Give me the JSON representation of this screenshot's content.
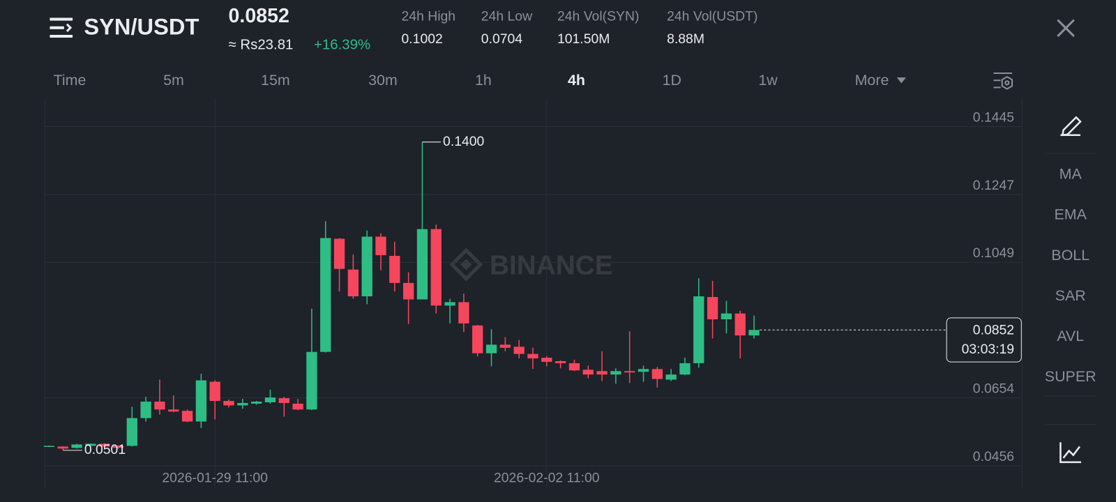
{
  "header": {
    "pair": "SYN/USDT",
    "price": "0.0852",
    "fiat_price": "≈ Rs23.81",
    "change": "+16.39%",
    "stats": [
      {
        "label": "24h High",
        "value": "0.1002"
      },
      {
        "label": "24h Low",
        "value": "0.0704"
      },
      {
        "label": "24h Vol(SYN)",
        "value": "101.50M"
      },
      {
        "label": "24h Vol(USDT)",
        "value": "8.88M"
      }
    ]
  },
  "timeframes": {
    "items": [
      "Time",
      "5m",
      "15m",
      "30m",
      "1h",
      "4h",
      "1D",
      "1w",
      "More"
    ],
    "active": "4h"
  },
  "indicators": [
    "MA",
    "EMA",
    "BOLL",
    "SAR",
    "AVL",
    "SUPER"
  ],
  "chart_data": {
    "type": "candlestick",
    "watermark": "BINANCE",
    "categories": [
      null,
      null,
      null,
      null,
      null,
      null,
      null,
      null,
      null,
      null,
      null,
      null,
      "2026-01-29 11:00",
      null,
      null,
      null,
      null,
      null,
      null,
      null,
      null,
      null,
      null,
      null,
      null,
      null,
      null,
      null,
      null,
      null,
      null,
      null,
      null,
      null,
      null,
      null,
      "2026-02-02 11:00",
      null,
      null,
      null,
      null,
      null,
      null,
      null,
      null,
      null,
      null,
      null,
      null,
      null,
      null,
      null
    ],
    "open": [
      0.0512,
      0.0512,
      0.0508,
      0.0514,
      0.052,
      0.0514,
      0.0514,
      0.0595,
      0.0643,
      0.062,
      0.0616,
      0.0585,
      0.0701,
      0.0645,
      0.0632,
      0.0637,
      0.0641,
      0.0653,
      0.0637,
      0.062,
      0.0788,
      0.1118,
      0.1028,
      0.095,
      0.1124,
      0.1068,
      0.0989,
      0.0941,
      0.1146,
      0.0923,
      0.0933,
      0.0865,
      0.0784,
      0.0809,
      0.0803,
      0.0782,
      0.0771,
      0.0761,
      0.0755,
      0.0736,
      0.0732,
      0.0722,
      0.0732,
      0.073,
      0.0738,
      0.0707,
      0.0722,
      0.0755,
      0.0948,
      0.0883,
      0.09,
      0.0836
    ],
    "high": [
      0.0515,
      0.0513,
      0.052,
      0.0521,
      0.0522,
      0.0516,
      0.0628,
      0.0657,
      0.0707,
      0.0661,
      0.062,
      0.0724,
      0.0705,
      0.0649,
      0.0651,
      0.0645,
      0.0678,
      0.0657,
      0.0651,
      0.0914,
      0.1169,
      0.112,
      0.1072,
      0.1142,
      0.1134,
      0.1109,
      0.102,
      0.14,
      0.1159,
      0.0943,
      0.0958,
      0.0867,
      0.0854,
      0.0831,
      0.0823,
      0.08,
      0.0775,
      0.0763,
      0.0765,
      0.0748,
      0.079,
      0.074,
      0.0848,
      0.0748,
      0.0744,
      0.0738,
      0.0771,
      0.1003,
      0.0995,
      0.0937,
      0.0908,
      0.0894
    ],
    "low": [
      0.0511,
      0.0501,
      0.0506,
      0.0513,
      0.051,
      0.0506,
      0.0512,
      0.0585,
      0.0605,
      0.0612,
      0.0583,
      0.0566,
      0.0591,
      0.0626,
      0.0622,
      0.0634,
      0.0637,
      0.0599,
      0.0618,
      0.0618,
      0.0786,
      0.0964,
      0.0943,
      0.0927,
      0.1026,
      0.0964,
      0.0869,
      0.0941,
      0.09,
      0.0871,
      0.0846,
      0.0775,
      0.0746,
      0.079,
      0.0769,
      0.0738,
      0.0746,
      0.074,
      0.0732,
      0.0711,
      0.0703,
      0.0695,
      0.0697,
      0.0701,
      0.0684,
      0.0703,
      0.072,
      0.0742,
      0.0827,
      0.0842,
      0.0769,
      0.0827
    ],
    "close": [
      0.0514,
      0.0506,
      0.0518,
      0.052,
      0.0512,
      0.0508,
      0.0595,
      0.0643,
      0.062,
      0.0614,
      0.0585,
      0.0705,
      0.0645,
      0.0632,
      0.0639,
      0.0643,
      0.0655,
      0.0639,
      0.062,
      0.0788,
      0.112,
      0.103,
      0.095,
      0.1124,
      0.107,
      0.0989,
      0.0941,
      0.1146,
      0.0923,
      0.0933,
      0.0871,
      0.0784,
      0.0809,
      0.08,
      0.0782,
      0.0769,
      0.0759,
      0.0755,
      0.0734,
      0.0722,
      0.0722,
      0.0732,
      0.0728,
      0.0738,
      0.0709,
      0.0722,
      0.0755,
      0.095,
      0.0883,
      0.09,
      0.0836,
      0.0852
    ],
    "up_color": "#2ebd85",
    "down_color": "#f6465d",
    "ylim": [
      0.0456,
      0.1528
    ],
    "yticks": [
      0.1445,
      0.1247,
      0.1049,
      0.0654,
      0.0456
    ],
    "grid": true,
    "high_marker": {
      "value": 0.14,
      "label": "0.1400"
    },
    "low_marker": 0.0501,
    "last_price": 0.0852,
    "countdown": "03:03:19"
  }
}
